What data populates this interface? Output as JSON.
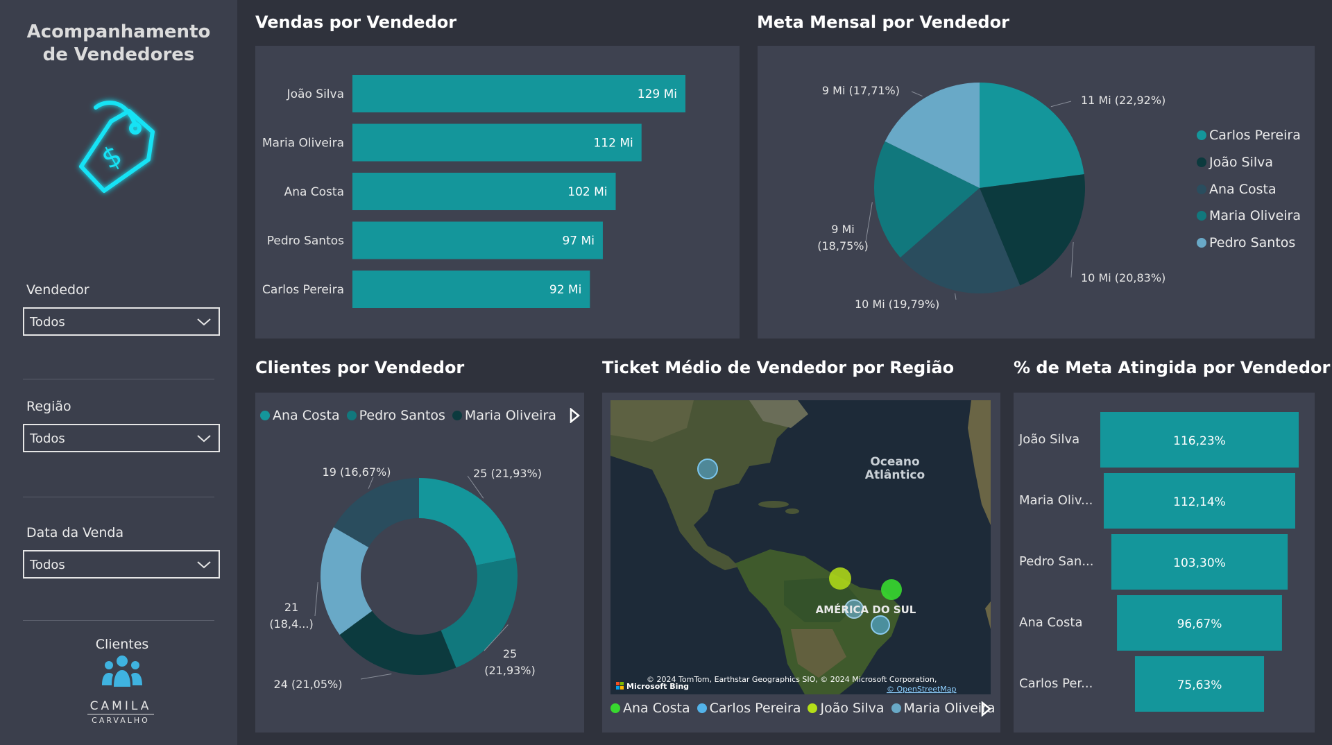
{
  "sidebar": {
    "title_line1": "Acompanhamento",
    "title_line2": "de Vendedores",
    "icon": "price-tag-dollar-icon",
    "filters": [
      {
        "label": "Vendedor",
        "value": "Todos"
      },
      {
        "label": "Região",
        "value": "Todos"
      },
      {
        "label": "Data da Venda",
        "value": "Todos"
      }
    ],
    "clientes_label": "Clientes",
    "brand_line1": "CAMILA",
    "brand_line2": "CARVALHO"
  },
  "colors": {
    "teal": "#14969b",
    "dark_teal": "#0c3a3e",
    "slate": "#2a4d5e",
    "mid_teal": "#11787d",
    "light_blue": "#69a9c7",
    "neon_cyan": "#19e3f5",
    "map_green": "#38d92f",
    "map_yellow": "#b5df18",
    "map_lightblue": "#53b3ea"
  },
  "vendas": {
    "title": "Vendas por Vendedor",
    "chart_data": {
      "type": "bar",
      "orientation": "horizontal",
      "categories": [
        "João Silva",
        "Maria Oliveira",
        "Ana Costa",
        "Pedro Santos",
        "Carlos Pereira"
      ],
      "values": [
        129,
        112,
        102,
        97,
        92
      ],
      "labels": [
        "129 Mi",
        "112 Mi",
        "102 Mi",
        "97 Mi",
        "92 Mi"
      ]
    }
  },
  "meta": {
    "title": "Meta Mensal por Vendedor",
    "chart_data": {
      "type": "pie",
      "slices": [
        {
          "name": "Carlos Pereira",
          "value": 11,
          "label": "11 Mi (22,92%)"
        },
        {
          "name": "João Silva",
          "value": 10,
          "label": "10 Mi (20,83%)"
        },
        {
          "name": "Ana Costa",
          "value": 9.5,
          "label": "10 Mi (19,79%)"
        },
        {
          "name": "Maria Oliveira",
          "value": 9,
          "label_line1": "9 Mi",
          "label_line2": "(18,75%)"
        },
        {
          "name": "Pedro Santos",
          "value": 8.5,
          "label": "9 Mi (17,71%)"
        }
      ],
      "legend": [
        "Carlos Pereira",
        "João Silva",
        "Ana Costa",
        "Maria Oliveira",
        "Pedro Santos"
      ],
      "legend_position": "right"
    }
  },
  "clientes": {
    "title": "Clientes por Vendedor",
    "legend": [
      "Ana Costa",
      "Pedro Santos",
      "Maria Oliveira"
    ],
    "chart_data": {
      "type": "donut",
      "slices": [
        {
          "value": 25,
          "label": "25 (21,93%)"
        },
        {
          "value": 25,
          "label_line1": "25",
          "label_line2": "(21,93%)"
        },
        {
          "value": 24,
          "label": "24 (21,05%)"
        },
        {
          "value": 21,
          "label_line1": "21",
          "label_line2": "(18,4...)"
        },
        {
          "value": 19,
          "label": "19 (16,67%)"
        }
      ]
    }
  },
  "ticket": {
    "title": "Ticket Médio de Vendedor por Região",
    "map": {
      "ocean_label_line1": "Oceano",
      "ocean_label_line2": "Atlântico",
      "continent_label": "AMÉRICA DO SUL",
      "attribution": "© 2024 TomTom, Earthstar Geographics SIO, © 2024 Microsoft Corporation,",
      "osm": "© OpenStreetMap",
      "bing": "Microsoft Bing"
    },
    "legend": [
      "Ana Costa",
      "Carlos Pereira",
      "João Silva",
      "Maria Oliveira"
    ]
  },
  "percent": {
    "title": "% de Meta Atingida por Vendedor",
    "chart_data": {
      "type": "funnel",
      "categories": [
        "João Silva",
        "Maria Oliv...",
        "Pedro San...",
        "Ana Costa",
        "Carlos Per..."
      ],
      "values": [
        116.23,
        112.14,
        103.3,
        96.67,
        75.63
      ],
      "labels": [
        "116,23%",
        "112,14%",
        "103,30%",
        "96,67%",
        "75,63%"
      ]
    }
  }
}
